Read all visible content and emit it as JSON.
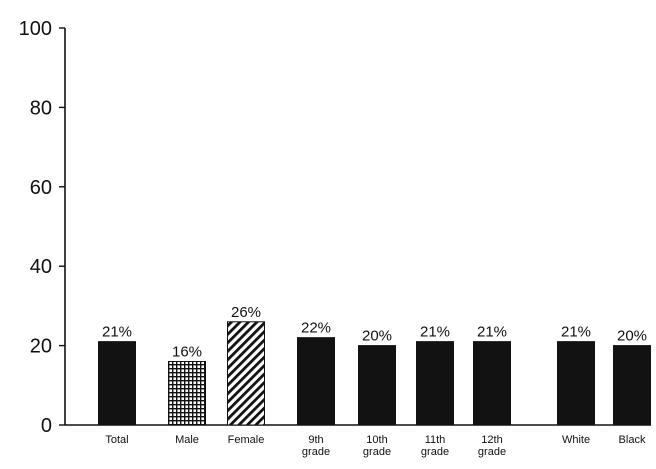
{
  "chart_data": {
    "type": "bar",
    "title": "",
    "xlabel": "",
    "ylabel": "",
    "ylim": [
      0,
      100
    ],
    "yticks": [
      0,
      20,
      40,
      60,
      80,
      100
    ],
    "grid": false,
    "categories": [
      [
        "Total"
      ],
      [
        "Male"
      ],
      [
        "Female"
      ],
      [
        "9th",
        "grade"
      ],
      [
        "10th",
        "grade"
      ],
      [
        "11th",
        "grade"
      ],
      [
        "12th",
        "grade"
      ],
      [
        "White"
      ],
      [
        "Black"
      ]
    ],
    "values": [
      21,
      16,
      26,
      22,
      20,
      21,
      21,
      21,
      20
    ],
    "labels": [
      "21%",
      "16%",
      "26%",
      "22%",
      "20%",
      "21%",
      "21%",
      "21%",
      "20%"
    ],
    "fills": [
      "solid",
      "grid",
      "hatch",
      "solid",
      "solid",
      "solid",
      "solid",
      "solid",
      "solid"
    ]
  }
}
